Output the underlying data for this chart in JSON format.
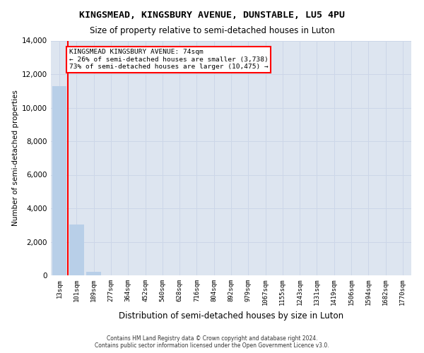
{
  "title": "KINGSMEAD, KINGSBURY AVENUE, DUNSTABLE, LU5 4PU",
  "subtitle": "Size of property relative to semi-detached houses in Luton",
  "xlabel": "Distribution of semi-detached houses by size in Luton",
  "ylabel": "Number of semi-detached properties",
  "categories": [
    "13sqm",
    "101sqm",
    "189sqm",
    "277sqm",
    "364sqm",
    "452sqm",
    "540sqm",
    "628sqm",
    "716sqm",
    "804sqm",
    "892sqm",
    "979sqm",
    "1067sqm",
    "1155sqm",
    "1243sqm",
    "1331sqm",
    "1419sqm",
    "1506sqm",
    "1594sqm",
    "1682sqm",
    "1770sqm"
  ],
  "values": [
    11300,
    3050,
    230,
    0,
    0,
    0,
    0,
    0,
    0,
    0,
    0,
    0,
    0,
    0,
    0,
    0,
    0,
    0,
    0,
    0,
    0
  ],
  "bar_color": "#b8cfe8",
  "property_sqm": 74,
  "smaller_pct": 26,
  "smaller_count": "3,738",
  "larger_pct": 73,
  "larger_count": "10,475",
  "annotation_line1": "KINGSMEAD KINGSBURY AVENUE: 74sqm",
  "annotation_line2": "← 26% of semi-detached houses are smaller (3,738)",
  "annotation_line3": "73% of semi-detached houses are larger (10,475) →",
  "ylim": [
    0,
    14000
  ],
  "yticks": [
    0,
    2000,
    4000,
    6000,
    8000,
    10000,
    12000,
    14000
  ],
  "grid_color": "#ccd6e8",
  "background_color": "#dde5f0",
  "footer_line1": "Contains HM Land Registry data © Crown copyright and database right 2024.",
  "footer_line2": "Contains public sector information licensed under the Open Government Licence v3.0."
}
